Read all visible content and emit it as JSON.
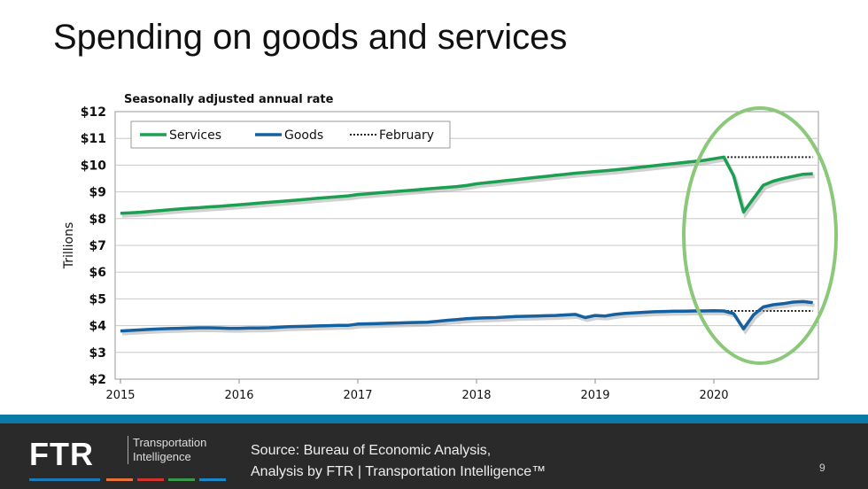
{
  "slide": {
    "title": "Spending on goods and services",
    "page_number": "9"
  },
  "footer": {
    "logo": "FTR",
    "logo_sub_1": "Transportation",
    "logo_sub_2": "Intelligence",
    "source_1": "Source: Bureau of Economic Analysis,",
    "source_2": "Analysis by FTR | Transportation Intelligence™",
    "accent_colors": [
      "#1a7ab8",
      "#e8713a",
      "#d0342c",
      "#3a9a4a",
      "#1a88c8"
    ]
  },
  "chart_data": {
    "type": "line",
    "subtitle": "Seasonally adjusted annual rate",
    "ylabel": "Trillions",
    "ylim": [
      2,
      12
    ],
    "yticks": [
      "$2",
      "$3",
      "$4",
      "$5",
      "$6",
      "$7",
      "$8",
      "$9",
      "$10",
      "$11",
      "$12"
    ],
    "xticks": [
      "2015",
      "2016",
      "2017",
      "2018",
      "2019",
      "2020"
    ],
    "x_start": "2015-01",
    "frequency": "monthly",
    "grid": true,
    "legend_placement": "top-left",
    "series": [
      {
        "name": "Services",
        "color": "#1aa050",
        "values": [
          8.2,
          8.22,
          8.24,
          8.27,
          8.3,
          8.33,
          8.36,
          8.39,
          8.41,
          8.44,
          8.46,
          8.49,
          8.52,
          8.55,
          8.58,
          8.61,
          8.64,
          8.67,
          8.7,
          8.73,
          8.76,
          8.79,
          8.82,
          8.85,
          8.9,
          8.93,
          8.96,
          8.99,
          9.02,
          9.05,
          9.08,
          9.11,
          9.14,
          9.17,
          9.2,
          9.24,
          9.3,
          9.34,
          9.38,
          9.42,
          9.46,
          9.5,
          9.54,
          9.58,
          9.62,
          9.66,
          9.7,
          9.73,
          9.76,
          9.79,
          9.82,
          9.86,
          9.9,
          9.94,
          9.98,
          10.02,
          10.06,
          10.1,
          10.14,
          10.18,
          10.24,
          10.3,
          9.6,
          8.25,
          8.75,
          9.25,
          9.4,
          9.5,
          9.58,
          9.66,
          9.68
        ]
      },
      {
        "name": "Goods",
        "color": "#1560a0",
        "values": [
          3.8,
          3.82,
          3.84,
          3.86,
          3.88,
          3.89,
          3.9,
          3.91,
          3.92,
          3.92,
          3.91,
          3.9,
          3.9,
          3.91,
          3.91,
          3.92,
          3.94,
          3.96,
          3.97,
          3.98,
          3.99,
          4.0,
          4.01,
          4.01,
          4.06,
          4.07,
          4.08,
          4.09,
          4.1,
          4.11,
          4.12,
          4.13,
          4.16,
          4.2,
          4.23,
          4.26,
          4.28,
          4.29,
          4.3,
          4.32,
          4.34,
          4.35,
          4.36,
          4.37,
          4.38,
          4.4,
          4.42,
          4.3,
          4.38,
          4.36,
          4.42,
          4.46,
          4.48,
          4.5,
          4.52,
          4.53,
          4.54,
          4.54,
          4.55,
          4.55,
          4.56,
          4.55,
          4.45,
          3.88,
          4.4,
          4.7,
          4.78,
          4.82,
          4.88,
          4.9,
          4.86
        ]
      },
      {
        "name": "February",
        "color": "#222222",
        "style": "dotted",
        "reference_values": [
          10.3,
          4.55
        ],
        "from": "2020-02",
        "to": "2020-11"
      }
    ],
    "annotation": {
      "type": "ellipse",
      "color": "#8cc87a",
      "covers": "2020"
    }
  }
}
